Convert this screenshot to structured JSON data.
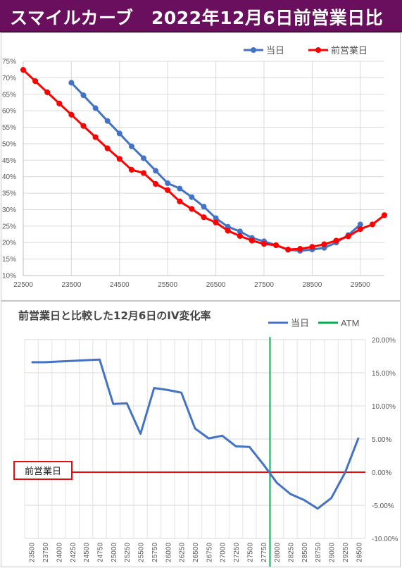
{
  "banner": {
    "title": "スマイルカーブ　2022年12月6日前営業日比",
    "bg": "#6a0f5e"
  },
  "chart_data": [
    {
      "type": "line",
      "title": "",
      "xlabel": "",
      "ylabel": "",
      "xlim": [
        22500,
        30000
      ],
      "ylim": [
        10,
        75
      ],
      "x_ticks": [
        22500,
        23500,
        24500,
        25500,
        26500,
        27500,
        28500,
        29500
      ],
      "y_ticks": [
        "10%",
        "15%",
        "20%",
        "25%",
        "30%",
        "35%",
        "40%",
        "45%",
        "50%",
        "55%",
        "60%",
        "65%",
        "70%",
        "75%"
      ],
      "legend_position": "top-right",
      "grid": true,
      "series": [
        {
          "name": "当日",
          "color": "#4472c4",
          "x": [
            23500,
            23750,
            24000,
            24250,
            24500,
            24750,
            25000,
            25250,
            25500,
            25750,
            26000,
            26250,
            26500,
            26750,
            27000,
            27250,
            27500,
            27750,
            28000,
            28250,
            28500,
            28750,
            29000,
            29250,
            29500
          ],
          "y": [
            68.5,
            64.7,
            60.8,
            56.9,
            53.1,
            49.2,
            45.6,
            41.8,
            38.0,
            36.4,
            33.8,
            30.9,
            27.4,
            24.8,
            23.4,
            21.4,
            20.4,
            19.2,
            17.8,
            17.5,
            17.9,
            18.4,
            20.0,
            22.3,
            25.5
          ]
        },
        {
          "name": "前営業日",
          "color": "#ff0000",
          "x": [
            22500,
            22750,
            23000,
            23250,
            23500,
            23750,
            24000,
            24250,
            24500,
            24750,
            25000,
            25250,
            25500,
            25750,
            26000,
            26250,
            26500,
            26750,
            27000,
            27250,
            27500,
            27750,
            28000,
            28250,
            28500,
            28750,
            29000,
            29250,
            29500,
            29750,
            30000
          ],
          "y": [
            72.4,
            69.0,
            65.6,
            62.2,
            58.8,
            55.4,
            52.0,
            48.6,
            45.4,
            42.1,
            41.1,
            37.8,
            35.9,
            32.5,
            30.2,
            27.7,
            26.1,
            23.6,
            22.0,
            20.6,
            19.6,
            19.2,
            17.9,
            18.1,
            18.7,
            19.5,
            20.6,
            21.9,
            24.1,
            25.5,
            28.3
          ]
        }
      ]
    },
    {
      "type": "line",
      "title": "前営業日と比較した12月6日のIV変化率",
      "xlabel": "",
      "ylabel": "",
      "ylim": [
        -10,
        20
      ],
      "y_ticks": [
        "-10.00%",
        "-5.00%",
        "0.00%",
        "5.00%",
        "10.00%",
        "15.00%",
        "20.00%"
      ],
      "y_axis_side": "right",
      "legend_position": "top-right",
      "grid": true,
      "categories": [
        "23500",
        "23750",
        "24000",
        "24250",
        "24500",
        "24750",
        "25000",
        "25250",
        "25500",
        "25750",
        "26000",
        "26250",
        "26500",
        "26750",
        "27000",
        "27250",
        "27500",
        "27750",
        "28000",
        "28250",
        "28500",
        "28750",
        "29000",
        "29250",
        "29500"
      ],
      "series": [
        {
          "name": "当日",
          "color": "#4472c4",
          "values": [
            16.6,
            16.6,
            16.7,
            16.8,
            16.9,
            17.0,
            10.3,
            10.4,
            5.8,
            12.7,
            12.4,
            12.0,
            6.6,
            5.1,
            5.5,
            3.9,
            3.8,
            1.2,
            -1.6,
            -3.3,
            -4.2,
            -5.5,
            -3.9,
            -0.1,
            5.2
          ]
        }
      ],
      "atm": {
        "name": "ATM",
        "category": "27750",
        "color": "#00b050"
      },
      "reference_line": {
        "label": "前営業日",
        "value": 0,
        "color": "#e01010"
      }
    }
  ]
}
